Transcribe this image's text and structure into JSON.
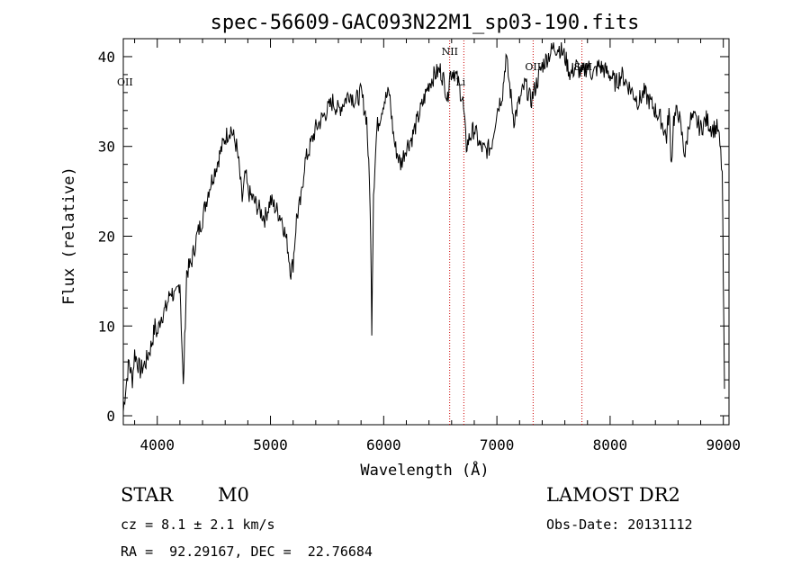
{
  "chart_data": {
    "type": "line",
    "title": "spec-56609-GAC093N22M1_sp03-190.fits",
    "xlabel": "Wavelength (Å)",
    "ylabel": "Flux (relative)",
    "xlim": [
      3700,
      9050
    ],
    "ylim": [
      -1,
      42
    ],
    "xticks": [
      4000,
      5000,
      6000,
      7000,
      8000,
      9000
    ],
    "yticks": [
      0,
      10,
      20,
      30,
      40
    ],
    "grid": false,
    "series": [
      {
        "color": "#000000",
        "points": [
          [
            3700,
            0.5
          ],
          [
            3720,
            3
          ],
          [
            3750,
            6
          ],
          [
            3780,
            4
          ],
          [
            3800,
            7
          ],
          [
            3850,
            5
          ],
          [
            3900,
            6
          ],
          [
            3950,
            8
          ],
          [
            3980,
            10
          ],
          [
            4000,
            9
          ],
          [
            4030,
            11
          ],
          [
            4080,
            12
          ],
          [
            4120,
            14
          ],
          [
            4160,
            13
          ],
          [
            4200,
            15
          ],
          [
            4230,
            3
          ],
          [
            4260,
            16
          ],
          [
            4300,
            17
          ],
          [
            4350,
            20
          ],
          [
            4400,
            22
          ],
          [
            4450,
            25
          ],
          [
            4500,
            27
          ],
          [
            4550,
            29
          ],
          [
            4600,
            31
          ],
          [
            4650,
            32
          ],
          [
            4700,
            30
          ],
          [
            4720,
            28
          ],
          [
            4750,
            24
          ],
          [
            4780,
            27
          ],
          [
            4800,
            25
          ],
          [
            4850,
            24
          ],
          [
            4900,
            23
          ],
          [
            4950,
            22
          ],
          [
            5000,
            24
          ],
          [
            5050,
            23
          ],
          [
            5100,
            22
          ],
          [
            5150,
            19
          ],
          [
            5180,
            16
          ],
          [
            5200,
            17
          ],
          [
            5230,
            22
          ],
          [
            5270,
            24
          ],
          [
            5300,
            28
          ],
          [
            5350,
            30
          ],
          [
            5400,
            32
          ],
          [
            5450,
            33
          ],
          [
            5500,
            34
          ],
          [
            5550,
            35
          ],
          [
            5600,
            34
          ],
          [
            5650,
            35
          ],
          [
            5700,
            36
          ],
          [
            5750,
            35
          ],
          [
            5800,
            36
          ],
          [
            5850,
            33
          ],
          [
            5880,
            24
          ],
          [
            5895,
            10
          ],
          [
            5910,
            25
          ],
          [
            5940,
            32
          ],
          [
            6000,
            35
          ],
          [
            6050,
            36
          ],
          [
            6080,
            32
          ],
          [
            6100,
            30
          ],
          [
            6150,
            28
          ],
          [
            6200,
            30
          ],
          [
            6250,
            31
          ],
          [
            6300,
            33
          ],
          [
            6350,
            35
          ],
          [
            6400,
            37
          ],
          [
            6450,
            38
          ],
          [
            6500,
            38.5
          ],
          [
            6540,
            37
          ],
          [
            6565,
            35
          ],
          [
            6580,
            38
          ],
          [
            6620,
            38.5
          ],
          [
            6660,
            37
          ],
          [
            6700,
            35
          ],
          [
            6730,
            30
          ],
          [
            6760,
            31
          ],
          [
            6800,
            32
          ],
          [
            6850,
            30
          ],
          [
            6900,
            29.5
          ],
          [
            6950,
            30
          ],
          [
            7000,
            34
          ],
          [
            7050,
            36
          ],
          [
            7080,
            40
          ],
          [
            7100,
            38
          ],
          [
            7150,
            33
          ],
          [
            7200,
            35
          ],
          [
            7250,
            37
          ],
          [
            7300,
            35
          ],
          [
            7350,
            37
          ],
          [
            7400,
            39
          ],
          [
            7450,
            40
          ],
          [
            7500,
            41
          ],
          [
            7550,
            41
          ],
          [
            7600,
            40
          ],
          [
            7650,
            38
          ],
          [
            7700,
            39
          ],
          [
            7750,
            38
          ],
          [
            7800,
            39
          ],
          [
            7850,
            38
          ],
          [
            7900,
            39
          ],
          [
            8000,
            38
          ],
          [
            8050,
            37
          ],
          [
            8100,
            38
          ],
          [
            8150,
            37
          ],
          [
            8200,
            36
          ],
          [
            8250,
            35
          ],
          [
            8300,
            36
          ],
          [
            8350,
            35
          ],
          [
            8400,
            34
          ],
          [
            8450,
            33
          ],
          [
            8498,
            31
          ],
          [
            8520,
            34
          ],
          [
            8542,
            28
          ],
          [
            8560,
            33
          ],
          [
            8600,
            34
          ],
          [
            8662,
            29
          ],
          [
            8700,
            33
          ],
          [
            8750,
            33
          ],
          [
            8800,
            32
          ],
          [
            8850,
            33
          ],
          [
            8900,
            32
          ],
          [
            8950,
            32
          ],
          [
            8970,
            30
          ],
          [
            8990,
            27
          ],
          [
            9000,
            15
          ],
          [
            9010,
            3
          ]
        ]
      }
    ],
    "emission_lines": [
      {
        "label": "NII",
        "wavelength": 6583
      },
      {
        "label": "Li",
        "wavelength": 6708
      },
      {
        "label": "OII",
        "wavelength": 7320
      },
      {
        "label": "SIII",
        "wavelength": 7751
      }
    ],
    "edge_label": "OII",
    "marker_color": "#cc0000"
  },
  "info": {
    "class_label": "STAR",
    "subclass": "M0",
    "survey": "LAMOST DR2",
    "redshift": "cz = 8.1 ± 2.1 km/s",
    "obs_date": "Obs-Date: 20131112",
    "coords": "RA =  92.29167, DEC =  22.76684"
  }
}
